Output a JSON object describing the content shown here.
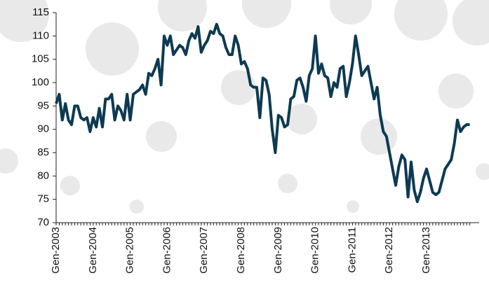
{
  "chart_data": {
    "type": "line",
    "categories": [
      "Gen-2003",
      null,
      null,
      null,
      null,
      null,
      null,
      null,
      null,
      null,
      null,
      null,
      "Gen-2004",
      null,
      null,
      null,
      null,
      null,
      null,
      null,
      null,
      null,
      null,
      null,
      "Gen-2005",
      null,
      null,
      null,
      null,
      null,
      null,
      null,
      null,
      null,
      null,
      null,
      "Gen-2006",
      null,
      null,
      null,
      null,
      null,
      null,
      null,
      null,
      null,
      null,
      null,
      "Gen-2007",
      null,
      null,
      null,
      null,
      null,
      null,
      null,
      null,
      null,
      null,
      null,
      "Gen-2008",
      null,
      null,
      null,
      null,
      null,
      null,
      null,
      null,
      null,
      null,
      null,
      "Gen-2009",
      null,
      null,
      null,
      null,
      null,
      null,
      null,
      null,
      null,
      null,
      null,
      "Gen-2010",
      null,
      null,
      null,
      null,
      null,
      null,
      null,
      null,
      null,
      null,
      null,
      "Gen-2011",
      null,
      null,
      null,
      null,
      null,
      null,
      null,
      null,
      null,
      null,
      null,
      "Gen-2012",
      null,
      null,
      null,
      null,
      null,
      null,
      null,
      null,
      null,
      null,
      null,
      "Gen-2013",
      null,
      null,
      null,
      null,
      null,
      null,
      null,
      null,
      null,
      null,
      null,
      null,
      null,
      null
    ],
    "series": [
      {
        "color": "#0d3a52",
        "values": [
          95.5,
          97.5,
          92,
          95.5,
          92,
          91,
          95,
          95,
          92.5,
          92,
          92.5,
          89.5,
          92.5,
          90.5,
          94.5,
          90.5,
          96.5,
          96.5,
          97.5,
          92,
          95,
          94,
          92,
          97.5,
          92,
          97.5,
          98,
          98.5,
          99.5,
          97.5,
          102,
          101.5,
          103,
          105,
          99.5,
          110,
          108,
          110,
          106,
          107,
          108,
          107.5,
          106,
          109,
          110.5,
          109.5,
          112,
          106.5,
          108,
          109,
          111,
          110.5,
          112.5,
          110.5,
          110,
          107.5,
          106,
          106,
          110,
          108,
          104,
          104.5,
          103,
          99.5,
          99,
          99,
          92.5,
          101,
          100.5,
          97.5,
          90,
          85,
          93,
          92.5,
          90.5,
          91,
          96.5,
          97,
          100.5,
          101,
          99,
          96,
          101.5,
          103,
          110,
          102,
          104,
          101.5,
          101,
          97,
          100,
          99,
          103,
          103.5,
          97,
          100,
          104,
          110,
          106,
          101.5,
          102.5,
          103.5,
          100,
          96.5,
          99,
          93,
          89.5,
          88.5,
          85,
          81.5,
          78,
          82,
          84.5,
          83.5,
          75.5,
          83,
          77,
          74.5,
          76.5,
          79.5,
          81.5,
          79,
          76.5,
          76,
          76.5,
          79,
          81.5,
          82.5,
          83.5,
          87,
          92,
          89.5,
          90.5,
          91,
          91
        ]
      }
    ],
    "ylim": [
      70,
      115
    ],
    "yticks": [
      70,
      75,
      80,
      85,
      90,
      95,
      100,
      105,
      110,
      115
    ]
  }
}
